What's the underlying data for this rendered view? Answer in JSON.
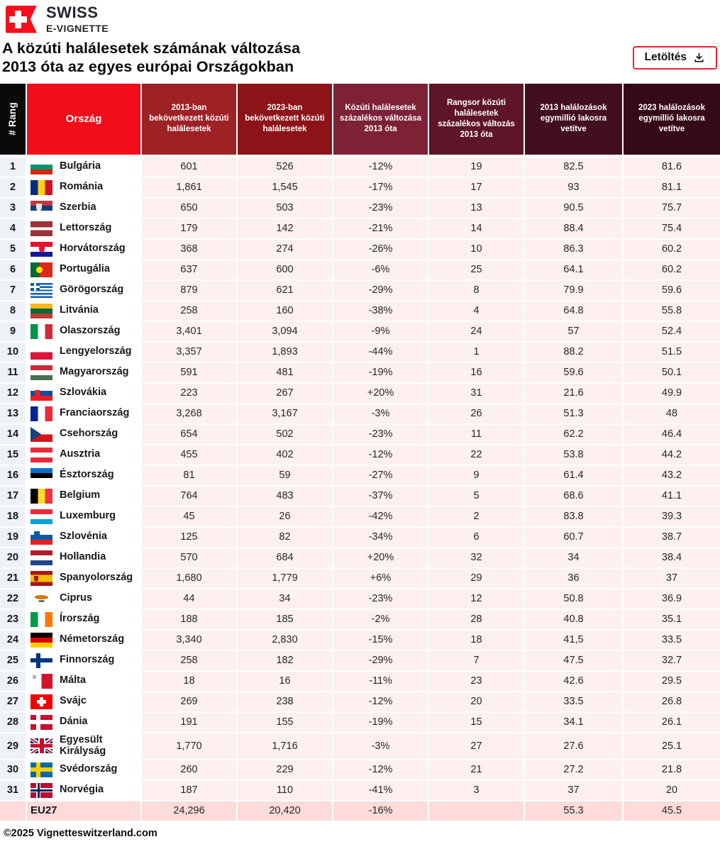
{
  "brand": {
    "top": "SWISS",
    "bottom": "E-VIGNETTE"
  },
  "title": "A közúti halálesetek számának változása\n2013 óta az egyes európai Országokban",
  "download": {
    "label": "Letöltés"
  },
  "colors": {
    "accent_red": "#f20d1b",
    "button_border": "#e82330",
    "cell_pink": "#fdf0ee",
    "eu_row_pink": "#fcdbda",
    "rank_col_bg": "#eef2f7"
  },
  "table": {
    "columns": [
      {
        "label": "# Rang",
        "bg": "#0a0a0a"
      },
      {
        "label": "Ország",
        "bg": "#f20d1b"
      },
      {
        "label": "2013-ban bekövetkezett közúti halálesetek",
        "bg": "#9e2125"
      },
      {
        "label": "2023-ban bekövetkezett közúti halálesetek",
        "bg": "#8c1318"
      },
      {
        "label": "Közúti halálesetek százalékos változása 2013 óta",
        "bg": "#7c2136"
      },
      {
        "label": "Rangsor közúti halálesetek százalékos változás 2013 óta",
        "bg": "#5e1527"
      },
      {
        "label": "2013 halálozások egymillió lakosra vetítve",
        "bg": "#420f20"
      },
      {
        "label": "2023 halálozások egymillió lakosra vetítve",
        "bg": "#36091a"
      }
    ],
    "rows": [
      {
        "rank": "1",
        "key": "bulgaria",
        "country": "Bulgária",
        "v2013": "601",
        "v2023": "526",
        "change": "-12%",
        "rank_change": "19",
        "pm2013": "82.5",
        "pm2023": "81.6",
        "flag": {
          "t": "h",
          "c": [
            "#ffffff",
            "#00966e",
            "#d62612"
          ]
        }
      },
      {
        "rank": "2",
        "key": "romania",
        "country": "Románia",
        "v2013": "1,861",
        "v2023": "1,545",
        "change": "-17%",
        "rank_change": "17",
        "pm2013": "93",
        "pm2023": "81.1",
        "flag": {
          "t": "v",
          "c": [
            "#002b7f",
            "#fcd116",
            "#ce1126"
          ]
        }
      },
      {
        "rank": "3",
        "key": "serbia",
        "country": "Szerbia",
        "v2013": "650",
        "v2023": "503",
        "change": "-23%",
        "rank_change": "13",
        "pm2013": "90.5",
        "pm2023": "75.7",
        "flag": {
          "t": "h",
          "c": [
            "#c7363d",
            "#0c4076",
            "#ffffff"
          ],
          "e": [
            {
              "c": "#efe5e0",
              "l": 26,
              "t": 22,
              "w": 8,
              "h": 11
            }
          ]
        }
      },
      {
        "rank": "4",
        "key": "latvia",
        "country": "Lettország",
        "v2013": "179",
        "v2023": "142",
        "change": "-21%",
        "rank_change": "14",
        "pm2013": "88.4",
        "pm2023": "75.4",
        "flag": {
          "t": "h",
          "c": [
            "#9e3039",
            "#ffffff",
            "#9e3039"
          ],
          "r": [
            2,
            1,
            2
          ]
        }
      },
      {
        "rank": "5",
        "key": "croatia",
        "country": "Horvátország",
        "v2013": "368",
        "v2023": "274",
        "change": "-26%",
        "rank_change": "10",
        "pm2013": "86.3",
        "pm2023": "60.2",
        "flag": {
          "t": "h",
          "c": [
            "#e8112d",
            "#ffffff",
            "#171796"
          ],
          "e": [
            {
              "c": "#e8112d",
              "l": 38,
              "t": 25,
              "w": 8,
              "h": 10
            }
          ]
        }
      },
      {
        "rank": "6",
        "key": "portugal",
        "country": "Portugália",
        "v2013": "637",
        "v2023": "600",
        "change": "-6%",
        "rank_change": "25",
        "pm2013": "64.1",
        "pm2023": "60.2",
        "flag": {
          "t": "v",
          "c": [
            "#046a38",
            "#da291c"
          ],
          "r": [
            2,
            3
          ],
          "e": [
            {
              "c": "#ffe000",
              "l": 27,
              "t": 28,
              "w": 9,
              "h": 9,
              "r": "50%"
            }
          ]
        }
      },
      {
        "rank": "7",
        "key": "greece",
        "country": "Görögország",
        "v2013": "879",
        "v2023": "621",
        "change": "-29%",
        "rank_change": "8",
        "pm2013": "79.9",
        "pm2023": "59.6",
        "flag": {
          "t": "gr"
        }
      },
      {
        "rank": "8",
        "key": "lithuania",
        "country": "Litvánia",
        "v2013": "258",
        "v2023": "160",
        "change": "-38%",
        "rank_change": "4",
        "pm2013": "64.8",
        "pm2023": "55.8",
        "flag": {
          "t": "h",
          "c": [
            "#ffb81c",
            "#046a38",
            "#be3a34"
          ]
        }
      },
      {
        "rank": "9",
        "key": "italy",
        "country": "Olaszország",
        "v2013": "3,401",
        "v2023": "3,094",
        "change": "-9%",
        "rank_change": "24",
        "pm2013": "57",
        "pm2023": "52.4",
        "flag": {
          "t": "v",
          "c": [
            "#009246",
            "#ffffff",
            "#ce2b37"
          ]
        }
      },
      {
        "rank": "10",
        "key": "poland",
        "country": "Lengyelország",
        "v2013": "3,357",
        "v2023": "1,893",
        "change": "-44%",
        "rank_change": "1",
        "pm2013": "88.2",
        "pm2023": "51.5",
        "flag": {
          "t": "h",
          "c": [
            "#ffffff",
            "#dc143c"
          ]
        }
      },
      {
        "rank": "11",
        "key": "hungary",
        "country": "Magyarország",
        "v2013": "591",
        "v2023": "481",
        "change": "-19%",
        "rank_change": "16",
        "pm2013": "59.6",
        "pm2023": "50.1",
        "flag": {
          "t": "h",
          "c": [
            "#ce2939",
            "#ffffff",
            "#477050"
          ]
        }
      },
      {
        "rank": "12",
        "key": "slovakia",
        "country": "Szlovákia",
        "v2013": "223",
        "v2023": "267",
        "change": "+20%",
        "rank_change": "31",
        "pm2013": "21.6",
        "pm2023": "49.9",
        "flag": {
          "t": "h",
          "c": [
            "#ffffff",
            "#0b4ea2",
            "#ee1c25"
          ],
          "e": [
            {
              "c": "#ee1c25",
              "l": 20,
              "t": 30,
              "w": 8,
              "h": 10
            }
          ]
        }
      },
      {
        "rank": "13",
        "key": "france",
        "country": "Franciaország",
        "v2013": "3,268",
        "v2023": "3,167",
        "change": "-3%",
        "rank_change": "26",
        "pm2013": "51.3",
        "pm2023": "48",
        "flag": {
          "t": "v",
          "c": [
            "#002395",
            "#ffffff",
            "#ed2939"
          ]
        }
      },
      {
        "rank": "14",
        "key": "czechia",
        "country": "Csehország",
        "v2013": "654",
        "v2023": "502",
        "change": "-23%",
        "rank_change": "11",
        "pm2013": "62.2",
        "pm2023": "46.4",
        "flag": {
          "t": "cz"
        }
      },
      {
        "rank": "15",
        "key": "austria",
        "country": "Ausztria",
        "v2013": "455",
        "v2023": "402",
        "change": "-12%",
        "rank_change": "22",
        "pm2013": "53.8",
        "pm2023": "44.2",
        "flag": {
          "t": "h",
          "c": [
            "#ed2939",
            "#ffffff",
            "#ed2939"
          ]
        }
      },
      {
        "rank": "16",
        "key": "estonia",
        "country": "Észtország",
        "v2013": "81",
        "v2023": "59",
        "change": "-27%",
        "rank_change": "9",
        "pm2013": "61.4",
        "pm2023": "43.2",
        "flag": {
          "t": "h",
          "c": [
            "#0072ce",
            "#000000",
            "#ffffff"
          ]
        }
      },
      {
        "rank": "17",
        "key": "belgium",
        "country": "Belgium",
        "v2013": "764",
        "v2023": "483",
        "change": "-37%",
        "rank_change": "5",
        "pm2013": "68.6",
        "pm2023": "41.1",
        "flag": {
          "t": "v",
          "c": [
            "#000000",
            "#fdda24",
            "#ef3340"
          ]
        }
      },
      {
        "rank": "18",
        "key": "luxembourg",
        "country": "Luxemburg",
        "v2013": "45",
        "v2023": "26",
        "change": "-42%",
        "rank_change": "2",
        "pm2013": "83.8",
        "pm2023": "39.3",
        "flag": {
          "t": "h",
          "c": [
            "#ed2939",
            "#ffffff",
            "#00a1de"
          ]
        }
      },
      {
        "rank": "19",
        "key": "slovenia",
        "country": "Szlovénia",
        "v2013": "125",
        "v2023": "82",
        "change": "-34%",
        "rank_change": "6",
        "pm2013": "60.7",
        "pm2023": "38.7",
        "flag": {
          "t": "h",
          "c": [
            "#ffffff",
            "#005da4",
            "#ed1c24"
          ],
          "e": [
            {
              "c": "#005da4",
              "l": 16,
              "t": 10,
              "w": 8,
              "h": 9
            }
          ]
        }
      },
      {
        "rank": "20",
        "key": "netherlands",
        "country": "Hollandia",
        "v2013": "570",
        "v2023": "684",
        "change": "+20%",
        "rank_change": "32",
        "pm2013": "34",
        "pm2023": "38.4",
        "flag": {
          "t": "h",
          "c": [
            "#ae1c28",
            "#ffffff",
            "#21468b"
          ]
        }
      },
      {
        "rank": "21",
        "key": "spain",
        "country": "Spanyolország",
        "v2013": "1,680",
        "v2023": "1,779",
        "change": "+6%",
        "rank_change": "29",
        "pm2013": "36",
        "pm2023": "37",
        "flag": {
          "t": "h",
          "c": [
            "#aa151b",
            "#f1bf00",
            "#aa151b"
          ],
          "r": [
            1,
            2,
            1
          ],
          "e": [
            {
              "c": "#ad1519",
              "l": 16,
              "t": 33,
              "w": 6,
              "h": 8
            }
          ]
        }
      },
      {
        "rank": "22",
        "key": "cyprus",
        "country": "Ciprus",
        "v2013": "44",
        "v2023": "34",
        "change": "-23%",
        "rank_change": "12",
        "pm2013": "50.8",
        "pm2023": "36.9",
        "flag": {
          "t": "cy"
        }
      },
      {
        "rank": "23",
        "key": "ireland",
        "country": "Írország",
        "v2013": "188",
        "v2023": "185",
        "change": "-2%",
        "rank_change": "28",
        "pm2013": "40.8",
        "pm2023": "35.1",
        "flag": {
          "t": "v",
          "c": [
            "#009a49",
            "#ffffff",
            "#ff7900"
          ]
        }
      },
      {
        "rank": "24",
        "key": "germany",
        "country": "Németország",
        "v2013": "3,340",
        "v2023": "2,830",
        "change": "-15%",
        "rank_change": "18",
        "pm2013": "41,5",
        "pm2023": "33.5",
        "flag": {
          "t": "h",
          "c": [
            "#000000",
            "#dd0000",
            "#ffce00"
          ]
        }
      },
      {
        "rank": "25",
        "key": "finland",
        "country": "Finnország",
        "v2013": "258",
        "v2023": "182",
        "change": "-29%",
        "rank_change": "7",
        "pm2013": "47.5",
        "pm2023": "32.7",
        "flag": {
          "t": "cross",
          "bg": "#ffffff",
          "cr": "#003580"
        }
      },
      {
        "rank": "26",
        "key": "malta",
        "country": "Málta",
        "v2013": "18",
        "v2023": "16",
        "change": "-11%",
        "rank_change": "23",
        "pm2013": "42.6",
        "pm2023": "29.5",
        "flag": {
          "t": "v",
          "c": [
            "#ffffff",
            "#cf142b"
          ],
          "e": [
            {
              "c": "#b5b0ad",
              "l": 10,
              "t": 10,
              "w": 5,
              "h": 5,
              "r": "0"
            }
          ]
        }
      },
      {
        "rank": "27",
        "key": "switzerland",
        "country": "Svájc",
        "v2013": "269",
        "v2023": "238",
        "change": "-12%",
        "rank_change": "20",
        "pm2013": "33.5",
        "pm2023": "26.8",
        "flag": {
          "t": "plus",
          "bg": "#f00000",
          "cr": "#ffffff"
        }
      },
      {
        "rank": "28",
        "key": "denmark",
        "country": "Dánia",
        "v2013": "191",
        "v2023": "155",
        "change": "-19%",
        "rank_change": "15",
        "pm2013": "34.1",
        "pm2023": "26.1",
        "flag": {
          "t": "cross",
          "bg": "#c8102e",
          "cr": "#ffffff"
        }
      },
      {
        "rank": "29",
        "key": "united-kingdom",
        "country": "Egyesült Királyság",
        "v2013": "1,770",
        "v2023": "1,716",
        "change": "-3%",
        "rank_change": "27",
        "pm2013": "27.6",
        "pm2023": "25.1",
        "flag": {
          "t": "uk"
        }
      },
      {
        "rank": "30",
        "key": "sweden",
        "country": "Svédország",
        "v2013": "260",
        "v2023": "229",
        "change": "-12%",
        "rank_change": "21",
        "pm2013": "27.2",
        "pm2023": "21.8",
        "flag": {
          "t": "cross",
          "bg": "#006aa7",
          "cr": "#fecc02"
        }
      },
      {
        "rank": "31",
        "key": "norway",
        "country": "Norvégia",
        "v2013": "187",
        "v2023": "110",
        "change": "-41%",
        "rank_change": "3",
        "pm2013": "37",
        "pm2023": "20",
        "flag": {
          "t": "cross",
          "bg": "#ba0c2f",
          "cr": "#ffffff",
          "inner": "#00205b"
        }
      }
    ],
    "eu_row": {
      "label": "EU27",
      "v2013": "24,296",
      "v2023": "20,420",
      "change": "-16%",
      "rank_change": "",
      "pm2013": "55.3",
      "pm2023": "45.5"
    }
  },
  "footer": {
    "copyright": "©2025 Vignetteswitzerland.com"
  }
}
